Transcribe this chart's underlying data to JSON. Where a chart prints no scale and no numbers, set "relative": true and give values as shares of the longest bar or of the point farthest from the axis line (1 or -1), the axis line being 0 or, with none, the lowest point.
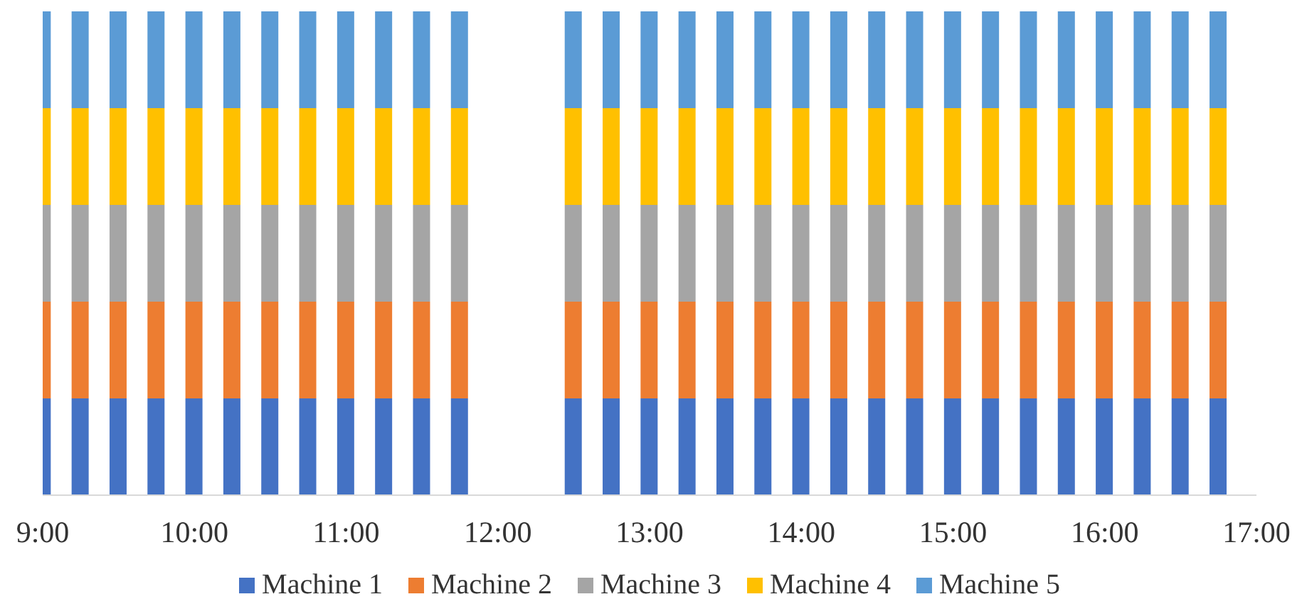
{
  "chart_data": {
    "type": "bar",
    "stacked": true,
    "relative": true,
    "x": [
      9,
      9.25,
      9.5,
      9.75,
      10,
      10.25,
      10.5,
      10.75,
      11,
      11.25,
      11.5,
      11.75,
      12.5,
      12.75,
      13,
      13.25,
      13.5,
      13.75,
      14,
      14.25,
      14.5,
      14.75,
      15,
      15.25,
      15.5,
      15.75,
      16,
      16.25,
      16.5,
      16.75
    ],
    "xlim": [
      9,
      17
    ],
    "xticks": [
      {
        "value": 9,
        "label": "9:00"
      },
      {
        "value": 10,
        "label": "10:00"
      },
      {
        "value": 11,
        "label": "11:00"
      },
      {
        "value": 12,
        "label": "12:00"
      },
      {
        "value": 13,
        "label": "13:00"
      },
      {
        "value": 14,
        "label": "14:00"
      },
      {
        "value": 15,
        "label": "15:00"
      },
      {
        "value": 16,
        "label": "16:00"
      },
      {
        "value": 17,
        "label": "17:00"
      }
    ],
    "legend": "bottom",
    "series": [
      {
        "name": "Machine 1",
        "color": "#4472c4",
        "values": [
          0.2,
          0.2,
          0.2,
          0.2,
          0.2,
          0.2,
          0.2,
          0.2,
          0.2,
          0.2,
          0.2,
          0.2,
          0.2,
          0.2,
          0.2,
          0.2,
          0.2,
          0.2,
          0.2,
          0.2,
          0.2,
          0.2,
          0.2,
          0.2,
          0.2,
          0.2,
          0.2,
          0.2,
          0.2,
          0.2
        ]
      },
      {
        "name": "Machine 2",
        "color": "#ed7d31",
        "values": [
          0.2,
          0.2,
          0.2,
          0.2,
          0.2,
          0.2,
          0.2,
          0.2,
          0.2,
          0.2,
          0.2,
          0.2,
          0.2,
          0.2,
          0.2,
          0.2,
          0.2,
          0.2,
          0.2,
          0.2,
          0.2,
          0.2,
          0.2,
          0.2,
          0.2,
          0.2,
          0.2,
          0.2,
          0.2,
          0.2
        ]
      },
      {
        "name": "Machine 3",
        "color": "#a5a5a5",
        "values": [
          0.2,
          0.2,
          0.2,
          0.2,
          0.2,
          0.2,
          0.2,
          0.2,
          0.2,
          0.2,
          0.2,
          0.2,
          0.2,
          0.2,
          0.2,
          0.2,
          0.2,
          0.2,
          0.2,
          0.2,
          0.2,
          0.2,
          0.2,
          0.2,
          0.2,
          0.2,
          0.2,
          0.2,
          0.2,
          0.2
        ]
      },
      {
        "name": "Machine 4",
        "color": "#ffc000",
        "values": [
          0.2,
          0.2,
          0.2,
          0.2,
          0.2,
          0.2,
          0.2,
          0.2,
          0.2,
          0.2,
          0.2,
          0.2,
          0.2,
          0.2,
          0.2,
          0.2,
          0.2,
          0.2,
          0.2,
          0.2,
          0.2,
          0.2,
          0.2,
          0.2,
          0.2,
          0.2,
          0.2,
          0.2,
          0.2,
          0.2
        ]
      },
      {
        "name": "Machine 5",
        "color": "#5b9bd5",
        "values": [
          0.2,
          0.2,
          0.2,
          0.2,
          0.2,
          0.2,
          0.2,
          0.2,
          0.2,
          0.2,
          0.2,
          0.2,
          0.2,
          0.2,
          0.2,
          0.2,
          0.2,
          0.2,
          0.2,
          0.2,
          0.2,
          0.2,
          0.2,
          0.2,
          0.2,
          0.2,
          0.2,
          0.2,
          0.2,
          0.2
        ]
      }
    ]
  }
}
